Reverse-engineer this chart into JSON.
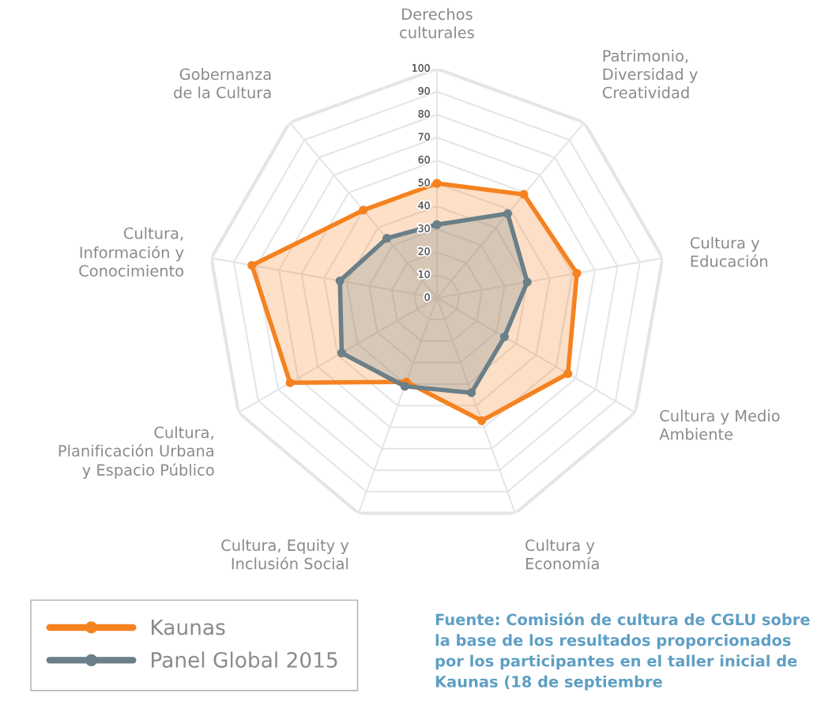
{
  "chart_data": {
    "type": "radar",
    "categories": [
      "Derechos\nculturales",
      "Patrimonio,\nDiversidad y\nCreatividad",
      "Cultura y\nEducación",
      "Cultura y Medio\nAmbiente",
      "Cultura y\nEconomía",
      "Cultura, Equity y\nInclusión Social",
      "Cultura,\nPlanificación Urbana\ny Espacio Público",
      "Cultura,\nInformación y\nConocimiento",
      "Gobernanza\nde la Cultura"
    ],
    "series": [
      {
        "name": "Kaunas",
        "color": "#f58220",
        "values": [
          50,
          59,
          62,
          66,
          57,
          39,
          74,
          82,
          50
        ]
      },
      {
        "name": "Panel Global 2015",
        "color": "#6a7f88",
        "values": [
          32,
          48,
          40,
          34,
          44,
          41,
          48,
          43,
          34
        ]
      }
    ],
    "ylim": [
      0,
      100
    ],
    "yticks": [
      0,
      10,
      20,
      30,
      40,
      50,
      60,
      70,
      80,
      90,
      100
    ],
    "grid": true,
    "legend": "bottom left",
    "marker": "circle",
    "line_style": "solid",
    "annotations": [
      "Fuente: Comisión de cultura de CGLU sobre la base de los resultados proporcionados por los participantes en el taller inicial de Kaunas (18 de septiembre"
    ]
  }
}
